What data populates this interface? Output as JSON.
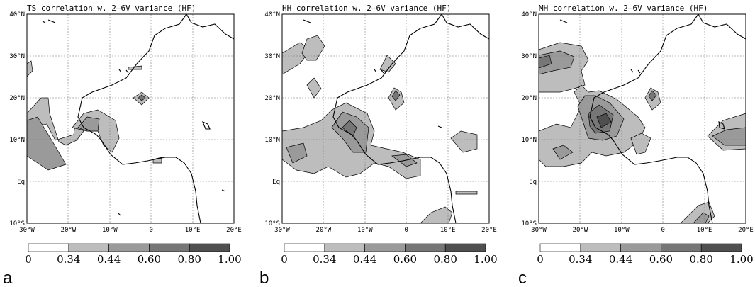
{
  "panels": [
    {
      "title": "TS correlation w. 2–6V variance (HF)",
      "letter": "a"
    },
    {
      "title": "HH correlation w. 2–6V variance (HF)",
      "letter": "b"
    },
    {
      "title": "MH correlation w. 2–6V variance (HF)",
      "letter": "c"
    }
  ],
  "axes": {
    "lat_ticks": [
      "40°N",
      "30°N",
      "20°N",
      "10°N",
      "Eq",
      "10°S"
    ],
    "lon_ticks": [
      "30°W",
      "20°W",
      "10°W",
      "0",
      "10°E",
      "20°E"
    ],
    "lat_values": [
      40,
      30,
      20,
      10,
      0,
      -10
    ],
    "lon_values": [
      -30,
      -20,
      -10,
      0,
      10,
      20
    ]
  },
  "colorbar": {
    "labels": [
      "0",
      "0.34",
      "0.44",
      "0.60",
      "0.80",
      "1.00"
    ],
    "colors": [
      "#ffffff",
      "#bdbdbd",
      "#9a9a9a",
      "#767676",
      "#4f4f4f"
    ]
  },
  "colors": {
    "level1": "#bdbdbd",
    "level2": "#9a9a9a",
    "level3": "#767676"
  }
}
